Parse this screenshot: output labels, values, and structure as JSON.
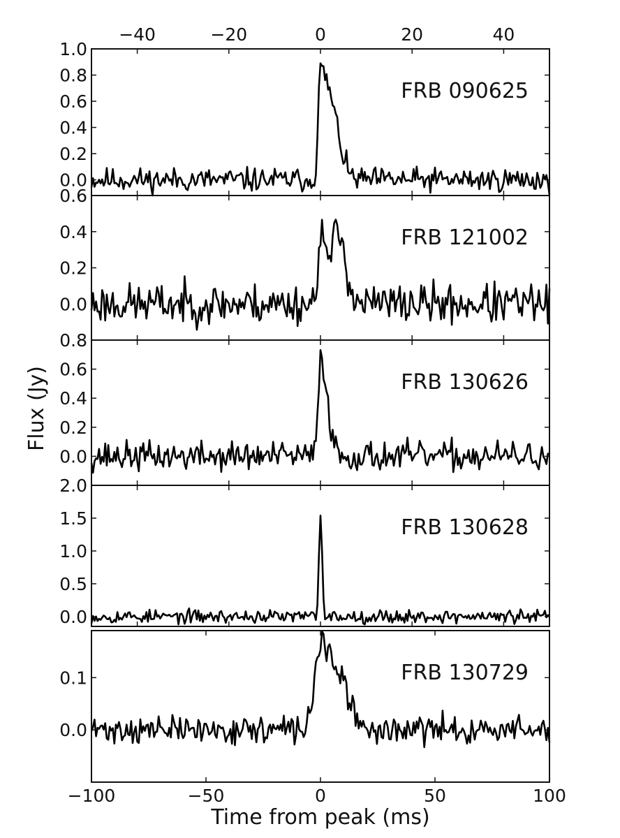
{
  "chart_data": {
    "type": "line",
    "xlabel": "Time from peak (ms)",
    "ylabel": "Flux (Jy)",
    "grid": false,
    "legend": "none",
    "bottom_axis": {
      "xlim": [
        -100,
        100
      ],
      "ticks": [
        -100,
        -50,
        0,
        50,
        100
      ],
      "tick_labels": [
        "−100",
        "−50",
        "0",
        "50",
        "100"
      ]
    },
    "top_axis": {
      "xlim": [
        -50,
        50
      ],
      "ticks": [
        -40,
        -20,
        0,
        20,
        40
      ],
      "tick_labels": [
        "−40",
        "−20",
        "0",
        "20",
        "40"
      ],
      "applies_to_panels": [
        0,
        1,
        2,
        3
      ]
    },
    "panels": [
      {
        "label": "FRB 090625",
        "xlim": [
          -50,
          50
        ],
        "ylim": [
          -0.12,
          1.0
        ],
        "yticks": [
          0.0,
          0.2,
          0.4,
          0.6,
          0.8,
          1.0
        ],
        "ytick_labels": [
          "0.0",
          "0.2",
          "0.4",
          "0.6",
          "0.8",
          "1.0"
        ],
        "features": {
          "noise": 0.045,
          "events": [
            [
              0,
              0.84,
              0.5,
              2.6
            ],
            [
              3.5,
              0.1,
              1.2,
              1.2
            ]
          ],
          "seed": 11
        }
      },
      {
        "label": "FRB 121002",
        "xlim": [
          -50,
          50
        ],
        "ylim": [
          -0.2,
          0.6
        ],
        "yticks": [
          0.0,
          0.2,
          0.4,
          0.6
        ],
        "ytick_labels": [
          "0.0",
          "0.2",
          "0.4",
          "0.6"
        ],
        "features": {
          "noise": 0.055,
          "events": [
            [
              0,
              0.37,
              0.6,
              0.9
            ],
            [
              3.8,
              0.39,
              1.7,
              1.7
            ]
          ],
          "seed": 23
        }
      },
      {
        "label": "FRB 130626",
        "xlim": [
          -50,
          50
        ],
        "ylim": [
          -0.2,
          0.8
        ],
        "yticks": [
          0.0,
          0.2,
          0.4,
          0.6,
          0.8
        ],
        "ytick_labels": [
          "0.0",
          "0.2",
          "0.4",
          "0.6",
          "0.8"
        ],
        "features": {
          "noise": 0.05,
          "events": [
            [
              0,
              0.68,
              0.5,
              1.5
            ]
          ],
          "seed": 37
        }
      },
      {
        "label": "FRB 130628",
        "xlim": [
          -50,
          50
        ],
        "ylim": [
          -0.15,
          2.0
        ],
        "yticks": [
          0.0,
          0.5,
          1.0,
          1.5,
          2.0
        ],
        "ytick_labels": [
          "0.0",
          "0.5",
          "1.0",
          "1.5",
          "2.0"
        ],
        "features": {
          "noise": 0.05,
          "events": [
            [
              0,
              1.62,
              0.3,
              0.35
            ]
          ],
          "seed": 53
        }
      },
      {
        "label": "FRB 130729",
        "xlim": [
          -100,
          100
        ],
        "ylim": [
          -0.1,
          0.19
        ],
        "yticks": [
          0.0,
          0.1
        ],
        "ytick_labels": [
          "0.0",
          "0.1"
        ],
        "features": {
          "noise": 0.013,
          "events": [
            [
              0,
              0.17,
              2.5,
              6
            ],
            [
              11,
              0.05,
              3,
              3
            ]
          ],
          "seed": 71
        }
      }
    ]
  }
}
